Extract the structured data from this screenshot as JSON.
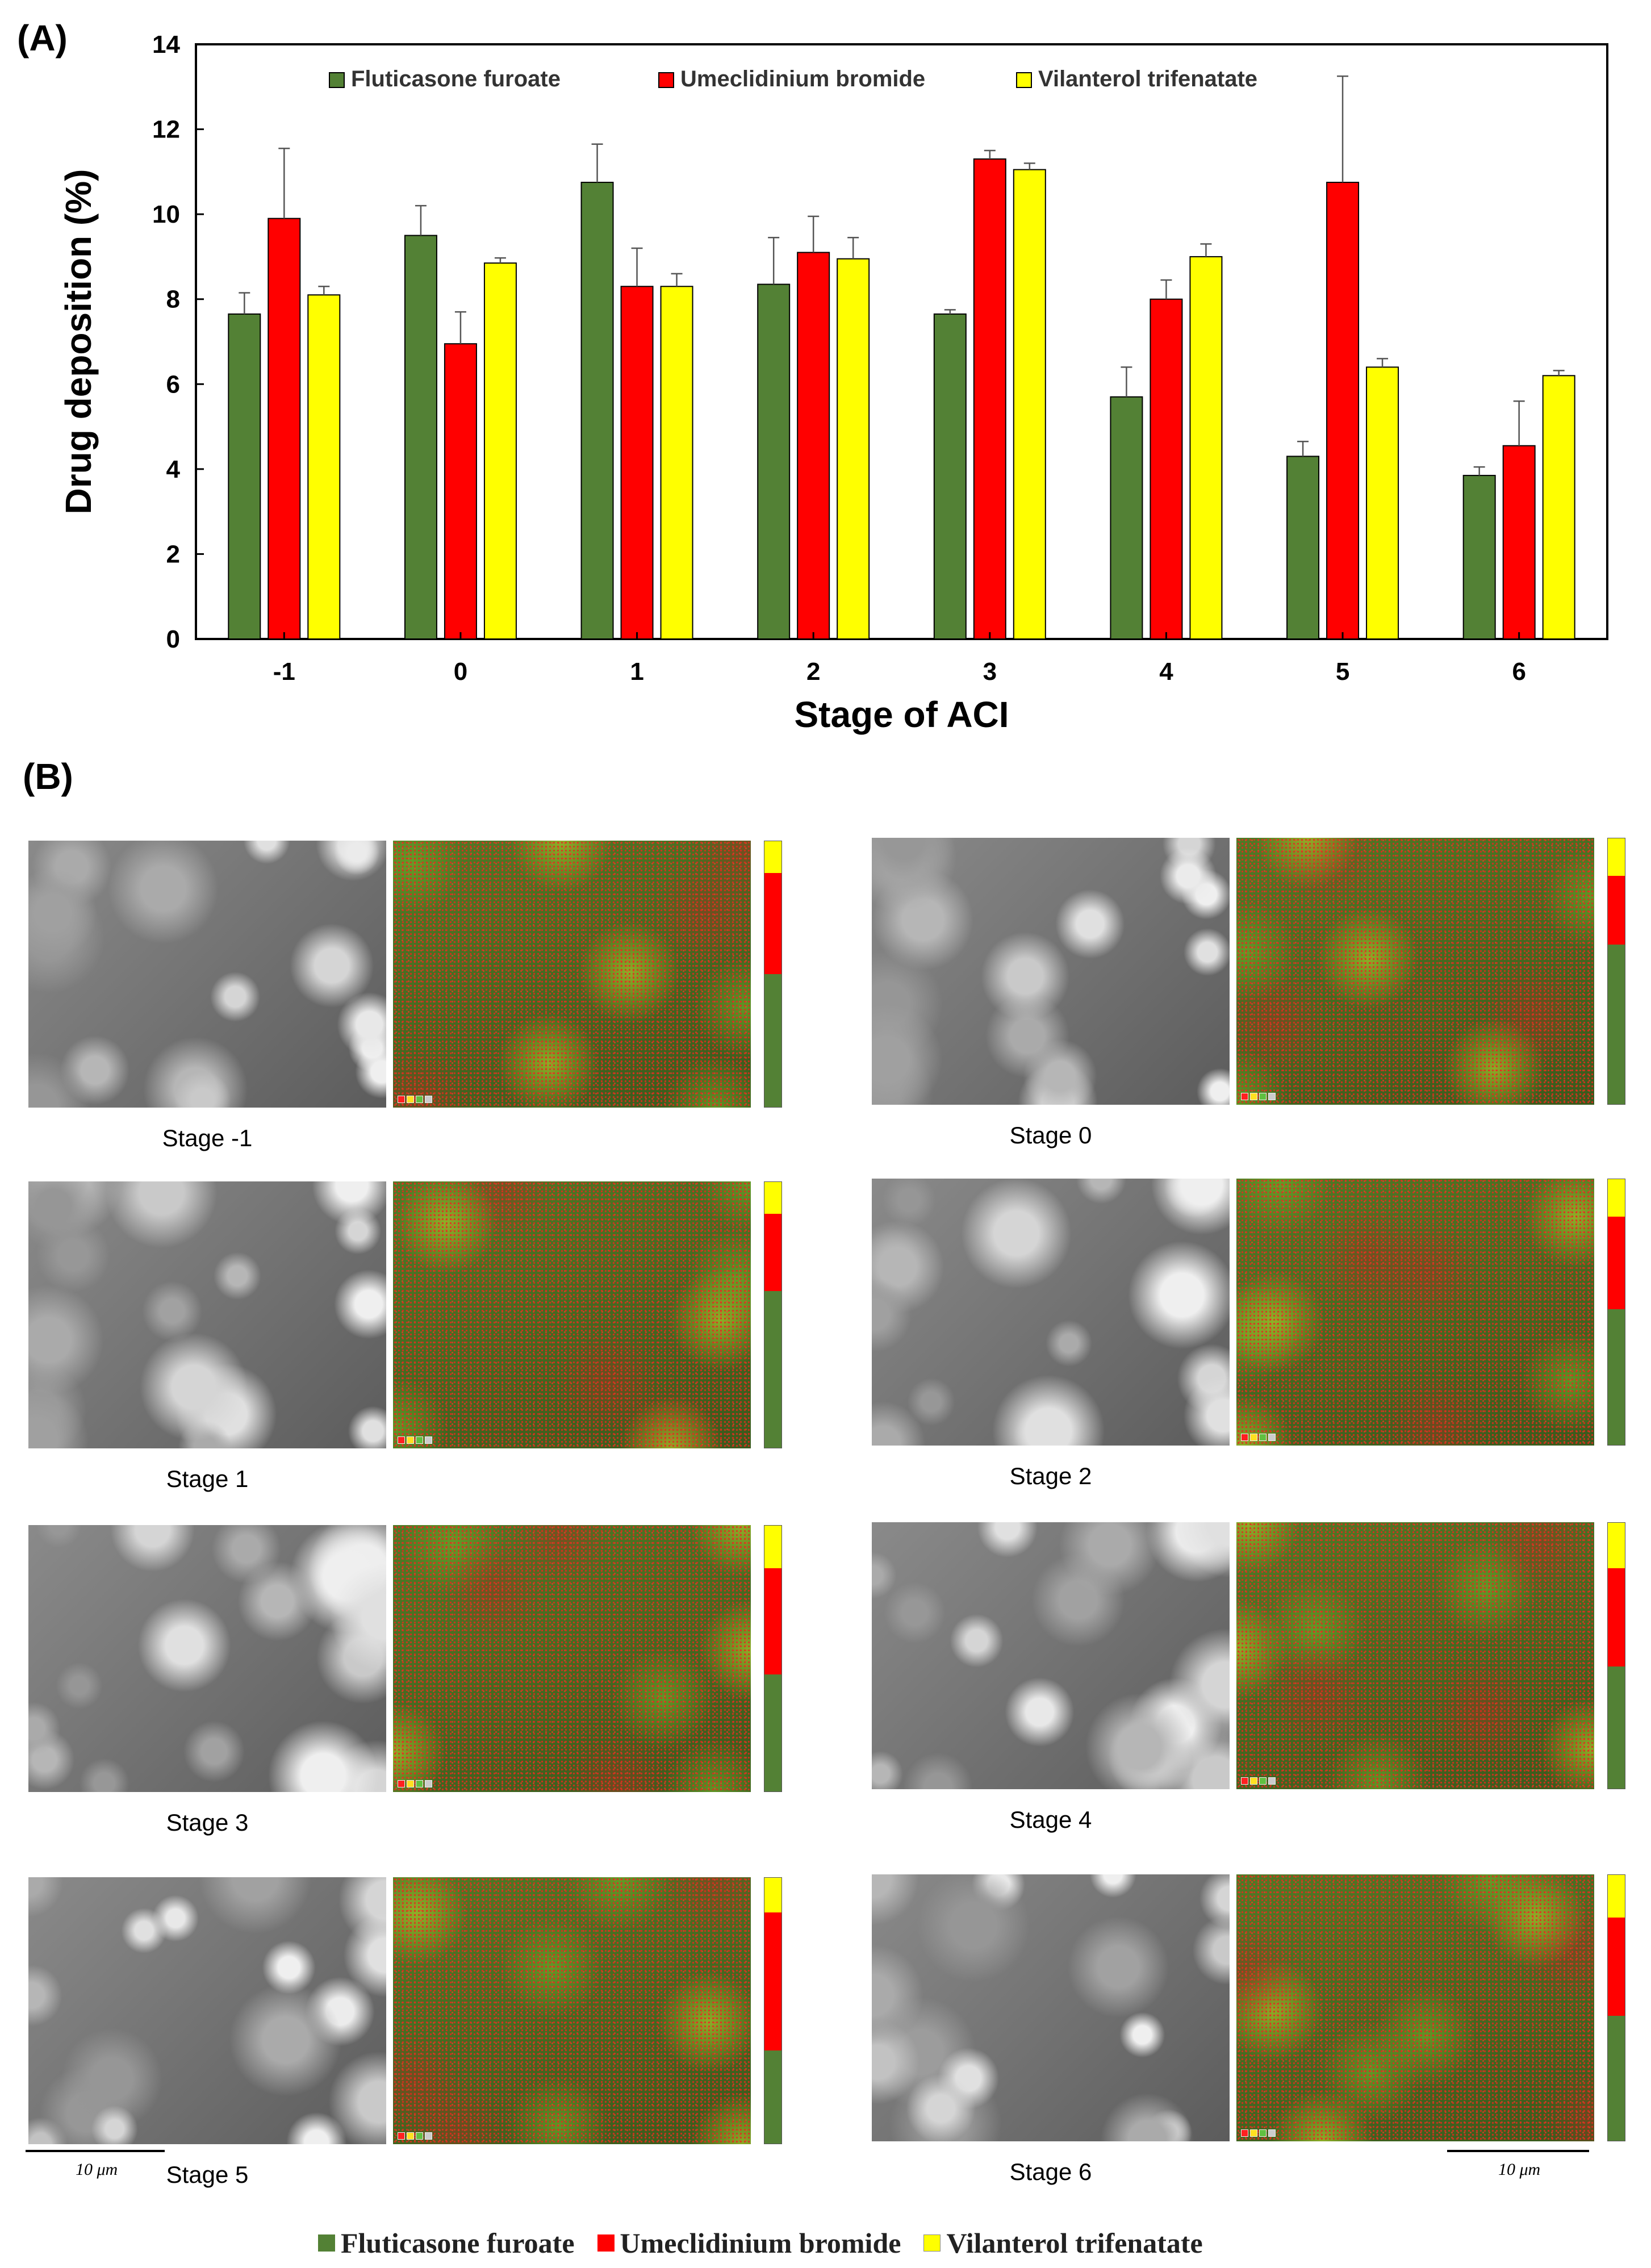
{
  "panel_a_label": "(A)",
  "panel_b_label": "(B)",
  "colors": {
    "fluticasone": "#538135",
    "umeclidinium": "#ff0000",
    "vilanterol": "#ffff00"
  },
  "chart_data": {
    "type": "bar",
    "categories": [
      "-1",
      "0",
      "1",
      "2",
      "3",
      "4",
      "5",
      "6"
    ],
    "series": [
      {
        "name": "Fluticasone furoate",
        "color": "#538135",
        "values": [
          7.65,
          9.5,
          10.75,
          8.35,
          7.65,
          5.7,
          4.3,
          3.85
        ],
        "errors": [
          0.5,
          0.7,
          0.9,
          1.1,
          0.1,
          0.7,
          0.35,
          0.2
        ]
      },
      {
        "name": "Umeclidinium bromide",
        "color": "#ff0000",
        "values": [
          9.9,
          6.95,
          8.3,
          9.1,
          11.3,
          8.0,
          10.75,
          4.55
        ],
        "errors": [
          1.65,
          0.75,
          0.9,
          0.85,
          0.2,
          0.45,
          2.5,
          1.05
        ]
      },
      {
        "name": "Vilanterol trifenatate",
        "color": "#ffff00",
        "values": [
          8.1,
          8.85,
          8.3,
          8.95,
          11.05,
          9.0,
          6.4,
          6.2
        ],
        "errors": [
          0.2,
          0.12,
          0.3,
          0.5,
          0.15,
          0.3,
          0.2,
          0.12
        ]
      }
    ],
    "ylim": [
      0,
      14
    ],
    "yticks": [
      0,
      2,
      4,
      6,
      8,
      10,
      12,
      14
    ],
    "ylabel": "Drug deposition (%)",
    "xlabel": "Stage of ACI",
    "legend_position": "top",
    "grid": false
  },
  "tiles": [
    {
      "caption": "Stage -1",
      "composition": [
        0.12,
        0.38,
        0.5
      ]
    },
    {
      "caption": "Stage 0",
      "composition": [
        0.14,
        0.26,
        0.6
      ]
    },
    {
      "caption": "Stage 1",
      "composition": [
        0.12,
        0.29,
        0.59
      ]
    },
    {
      "caption": "Stage 2",
      "composition": [
        0.14,
        0.35,
        0.51
      ]
    },
    {
      "caption": "Stage 3",
      "composition": [
        0.16,
        0.4,
        0.44
      ]
    },
    {
      "caption": "Stage 4",
      "composition": [
        0.17,
        0.37,
        0.46
      ]
    },
    {
      "caption": "Stage 5",
      "composition": [
        0.13,
        0.52,
        0.35
      ]
    },
    {
      "caption": "Stage 6",
      "composition": [
        0.16,
        0.37,
        0.47
      ]
    }
  ],
  "scale_bar_label": "10 μm",
  "bottom_legend": [
    {
      "label": "Fluticasone furoate",
      "color": "#538135"
    },
    {
      "label": "Umeclidinium bromide",
      "color": "#ff0000"
    },
    {
      "label": "Vilanterol trifenatate",
      "color": "#ffff00"
    }
  ]
}
